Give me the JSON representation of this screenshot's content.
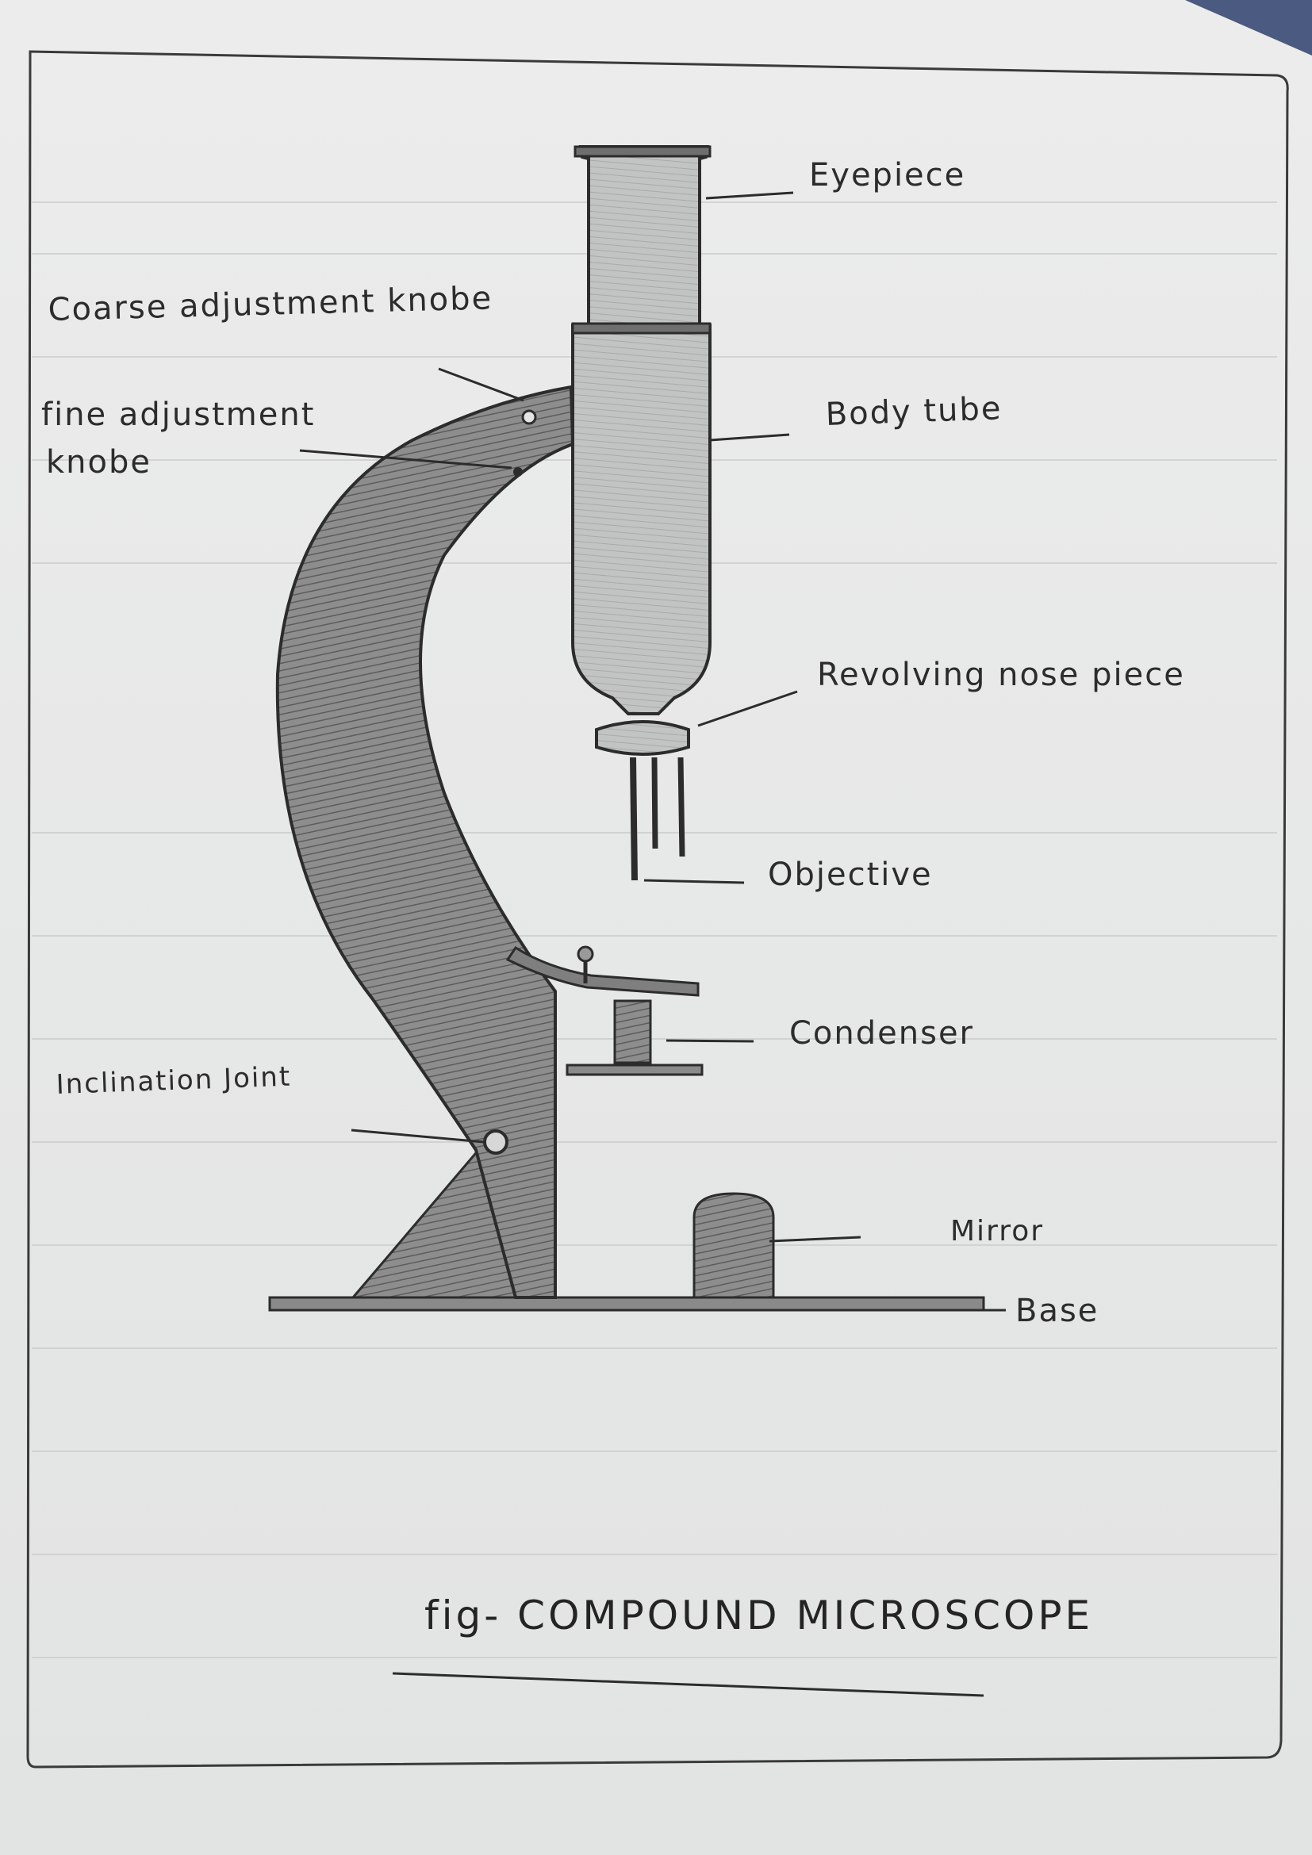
{
  "labels": {
    "eyepiece": "Eyepiece",
    "coarse_knob": "Coarse adjustment knobe",
    "fine_knob_line1": "fine adjustment",
    "fine_knob_line2": "knobe",
    "body_tube": "Body tube",
    "nose_piece": "Revolving nose piece",
    "objective": "Objective",
    "condenser": "Condenser",
    "inclination_joint": "Inclination Joint",
    "mirror": "Mirror",
    "base": "Base"
  },
  "caption": "fig- COMPOUND MICROSCOPE",
  "colors": {
    "paper": "#e8e9e9",
    "ink": "#2c2c2c",
    "shade": "#8a8a8a"
  }
}
